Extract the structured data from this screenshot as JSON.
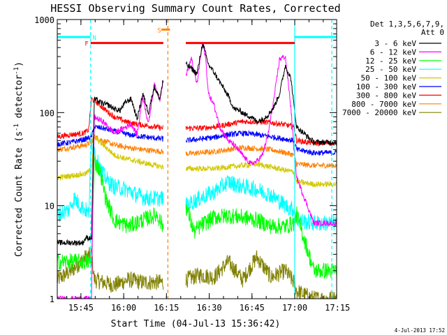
{
  "chart_data": {
    "type": "line",
    "title": "HESSI Observing Summary Count Rates, Corrected",
    "xlabel": "Start Time (04-Jul-13 15:36:42)",
    "ylabel": "Corrected Count Rate (s",
    "ylabel_sup1": "-1",
    "ylabel_mid": " detector",
    "ylabel_sup2": "-1",
    "ylabel_end": ")",
    "x_unit": "minutes since 15:36:42",
    "xlim": [
      0,
      98
    ],
    "ylim": [
      1,
      1000
    ],
    "yscale": "log",
    "xticks": [
      {
        "label": "15:45",
        "value": 8.3
      },
      {
        "label": "16:00",
        "value": 23.3
      },
      {
        "label": "16:15",
        "value": 38.3
      },
      {
        "label": "16:30",
        "value": 53.3
      },
      {
        "label": "16:45",
        "value": 68.3
      },
      {
        "label": "17:00",
        "value": 83.3
      },
      {
        "label": "17:15",
        "value": 98.3
      }
    ],
    "yticks": [
      {
        "label": "1",
        "value": 1
      },
      {
        "label": "10",
        "value": 10
      },
      {
        "label": "100",
        "value": 100
      },
      {
        "label": "1000",
        "value": 1000
      }
    ],
    "legend_header": [
      "Det 1,3,5,6,7,9,",
      "Att 0"
    ],
    "legend_position": "right",
    "timestamp": "4-Jul-2013 17:52",
    "gaps": [
      [
        37.2,
        45.1
      ]
    ],
    "flags": [
      {
        "label": "N",
        "color": "#00ffff",
        "level": 650,
        "segments": [
          [
            0,
            11.7
          ],
          [
            83.3,
            98
          ]
        ],
        "marker_x": 13
      },
      {
        "label": "F",
        "color": "#ff0000",
        "level": 560,
        "segments": [
          [
            11.7,
            37.2
          ],
          [
            45.1,
            83.3
          ]
        ],
        "marker_x": 10.3
      },
      {
        "label": "S",
        "color": "#ff8000",
        "level": 780,
        "segments": [
          [
            36.5,
            39.5
          ]
        ],
        "marker_x": 35.8
      }
    ],
    "markers": [
      {
        "color": "#00ffff",
        "x": 11.7,
        "style": "dashed"
      },
      {
        "color": "#ff8000",
        "x": 38.8,
        "style": "dashed"
      },
      {
        "color": "#00ffff",
        "x": 83.3,
        "style": "solid"
      },
      {
        "color": "#00ffff",
        "x": 96.3,
        "style": "dashed"
      }
    ],
    "series": [
      {
        "name": "3 - 6 keV",
        "color": "#000000",
        "x": [
          0,
          5,
          9,
          10,
          11,
          12,
          13,
          16,
          18,
          20,
          22,
          24,
          26,
          28,
          30,
          32,
          34,
          36,
          37,
          45.1,
          47,
          49,
          50,
          51,
          53,
          55,
          58,
          60,
          62,
          64,
          66,
          68,
          70,
          72,
          74,
          76,
          78,
          80,
          82,
          83,
          84,
          90,
          98
        ],
        "values": [
          4,
          4,
          4,
          4.5,
          4.5,
          4.5,
          140,
          125,
          120,
          110,
          105,
          130,
          140,
          85,
          160,
          100,
          190,
          140,
          215,
          330,
          300,
          260,
          380,
          560,
          330,
          270,
          190,
          150,
          110,
          105,
          95,
          90,
          80,
          85,
          95,
          115,
          160,
          320,
          230,
          120,
          70,
          48,
          48
        ]
      },
      {
        "name": "6 - 12 keV",
        "color": "#ff00ff",
        "x": [
          0,
          8,
          9,
          10,
          12,
          13,
          16,
          18,
          20,
          22,
          24,
          26,
          28,
          30,
          32,
          34,
          36,
          37,
          45.1,
          47,
          49,
          50,
          51,
          52,
          53,
          55,
          57,
          60,
          62,
          64,
          66,
          68,
          70,
          72,
          74,
          76,
          78,
          80,
          82,
          83,
          84,
          90,
          98
        ],
        "values": [
          1,
          1,
          1,
          1,
          1,
          90,
          80,
          70,
          60,
          65,
          70,
          75,
          58,
          150,
          75,
          200,
          140,
          210,
          250,
          380,
          200,
          350,
          560,
          400,
          160,
          120,
          70,
          50,
          45,
          38,
          32,
          28,
          30,
          35,
          60,
          140,
          380,
          400,
          110,
          40,
          20,
          6.5,
          6.5
        ]
      },
      {
        "name": "12 - 25 keV",
        "color": "#00ff00",
        "x": [
          0,
          10,
          11,
          12,
          13,
          15,
          17,
          20,
          25,
          30,
          35,
          37,
          45.1,
          48,
          50,
          55,
          60,
          65,
          70,
          75,
          80,
          83,
          84,
          90,
          98
        ],
        "values": [
          2.5,
          2.5,
          2.5,
          2.5,
          30,
          24,
          12,
          7,
          6,
          7,
          8,
          6,
          10,
          5.2,
          6,
          7.5,
          7.8,
          7.5,
          7,
          6,
          6,
          6.5,
          8,
          2,
          2
        ]
      },
      {
        "name": "25 - 50 keV",
        "color": "#00ffff",
        "x": [
          0,
          4,
          6,
          8,
          10,
          11,
          12,
          13,
          14,
          16,
          18,
          20,
          24,
          28,
          32,
          37,
          45.1,
          50,
          55,
          60,
          65,
          70,
          75,
          80,
          83,
          84,
          90,
          98
        ],
        "values": [
          8,
          9,
          12,
          10,
          9,
          8,
          50,
          40,
          30,
          22,
          18,
          16,
          15,
          13,
          12,
          12,
          10,
          12,
          14,
          18,
          16,
          15,
          13,
          10,
          9,
          7,
          6.5,
          6.5
        ]
      },
      {
        "name": "50 - 100 keV",
        "color": "#d2c800",
        "x": [
          0,
          5,
          10,
          12,
          13,
          15,
          18,
          20,
          24,
          28,
          32,
          37,
          45.1,
          50,
          55,
          60,
          65,
          70,
          75,
          80,
          83,
          84,
          90,
          98
        ],
        "values": [
          20,
          21,
          22,
          25,
          55,
          48,
          40,
          35,
          32,
          30,
          28,
          26,
          25,
          25,
          25,
          26,
          27,
          28,
          26,
          24,
          23,
          18,
          17,
          17
        ]
      },
      {
        "name": "100 - 300 keV",
        "color": "#0000ff",
        "x": [
          0,
          5,
          10,
          12,
          13,
          16,
          20,
          25,
          30,
          37,
          45.1,
          50,
          55,
          60,
          65,
          70,
          75,
          80,
          83,
          84,
          90,
          98
        ],
        "values": [
          46,
          48,
          52,
          55,
          70,
          68,
          63,
          58,
          55,
          52,
          50,
          52,
          54,
          58,
          60,
          58,
          55,
          52,
          50,
          40,
          37,
          37
        ]
      },
      {
        "name": "300 - 800 keV",
        "color": "#ff0000",
        "x": [
          0,
          5,
          9,
          10,
          11,
          12,
          13,
          15,
          18,
          20,
          24,
          28,
          32,
          37,
          45.1,
          50,
          55,
          60,
          65,
          70,
          75,
          80,
          83,
          84,
          90,
          98
        ],
        "values": [
          55,
          58,
          60,
          62,
          65,
          140,
          135,
          120,
          100,
          90,
          80,
          75,
          72,
          68,
          68,
          68,
          70,
          75,
          80,
          80,
          78,
          74,
          70,
          50,
          47,
          47
        ]
      },
      {
        "name": "800 - 7000 keV",
        "color": "#ff8000",
        "x": [
          0,
          5,
          10,
          12,
          13,
          16,
          20,
          25,
          30,
          37,
          45.1,
          50,
          55,
          60,
          65,
          70,
          75,
          80,
          83,
          84,
          90,
          98
        ],
        "values": [
          40,
          42,
          45,
          48,
          55,
          50,
          45,
          42,
          40,
          38,
          36,
          37,
          38,
          40,
          42,
          41,
          40,
          37,
          35,
          28,
          27,
          27
        ]
      },
      {
        "name": "7000 - 20000 keV",
        "color": "#808000",
        "x": [
          0,
          5,
          10,
          12,
          13,
          16,
          20,
          25,
          30,
          37,
          45.1,
          50,
          55,
          60,
          65,
          70,
          75,
          80,
          83,
          84,
          90,
          98
        ],
        "values": [
          1.6,
          2,
          2.8,
          3,
          1.6,
          1.5,
          1.4,
          1.6,
          1.5,
          1.5,
          1.6,
          1.8,
          1.7,
          2.5,
          1.6,
          2.8,
          1.7,
          2,
          1.5,
          1.2,
          1,
          1
        ]
      }
    ]
  }
}
